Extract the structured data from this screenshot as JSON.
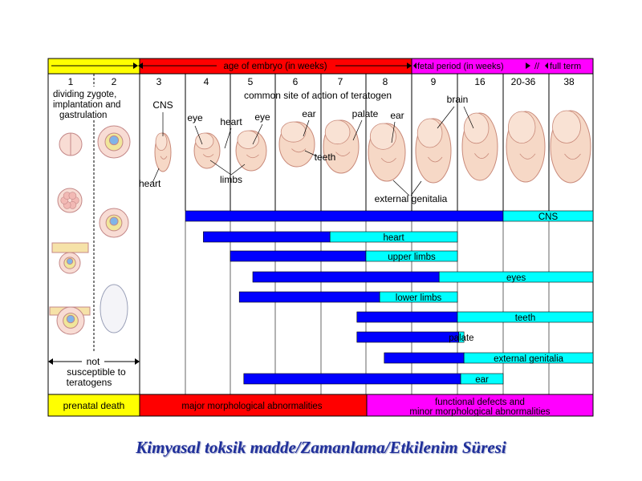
{
  "chart_data": {
    "type": "table",
    "header": {
      "prenatal_arrow": "",
      "embryo_period": "age of embryo (in weeks)",
      "fetal_period": "fetal period (in weeks)",
      "full_term": "full term"
    },
    "weeks": [
      "1",
      "2",
      "3",
      "4",
      "5",
      "6",
      "7",
      "8",
      "9",
      "16",
      "20-36",
      "38"
    ],
    "early_note": [
      "dividing zygote,",
      "implantation and",
      "gastrulation"
    ],
    "common_site_note": "common site of action of teratogen",
    "organ_labels": [
      "CNS",
      "heart",
      "eye",
      "heart",
      "eye",
      "ear",
      "palate",
      "ear",
      "brain",
      "teeth",
      "limbs",
      "heart",
      "external genitalia"
    ],
    "not_susceptible": [
      "not",
      "susceptible to",
      "teratogens"
    ],
    "series": [
      {
        "name": "CNS",
        "dark_start": 3,
        "dark_end": 20,
        "light_end": 38
      },
      {
        "name": "heart",
        "dark_start": 3.4,
        "dark_end": 6.2,
        "light_end": 9
      },
      {
        "name": "upper limbs",
        "dark_start": 4,
        "dark_end": 7,
        "light_end": 9
      },
      {
        "name": "eyes",
        "dark_start": 4.5,
        "dark_end": 8.6,
        "light_end": 38
      },
      {
        "name": "lower limbs",
        "dark_start": 4.2,
        "dark_end": 7.3,
        "light_end": 9
      },
      {
        "name": "teeth",
        "dark_start": 6.8,
        "dark_end": 9,
        "light_end": 38
      },
      {
        "name": "palate",
        "dark_start": 6.8,
        "dark_end": 9.2,
        "light_end": 10
      },
      {
        "name": "external genitalia",
        "dark_start": 7.4,
        "dark_end": 10,
        "light_end": 38
      },
      {
        "name": "ear",
        "dark_start": 4.3,
        "dark_end": 9.5,
        "light_end": 20
      }
    ],
    "footer_labels": {
      "prenatal": "prenatal death",
      "major": "major morphological abnormalities",
      "functional_1": "functional defects and",
      "functional_2": "minor morphological abnormalities"
    },
    "colors": {
      "yellow": "#ffff00",
      "red": "#ff0000",
      "magenta": "#ff00ff",
      "dark_bar": "#0000ff",
      "light_bar": "#00ffff"
    }
  },
  "page_title": "Kimyasal toksik madde/Zamanlama/Etkilenim Süresi"
}
